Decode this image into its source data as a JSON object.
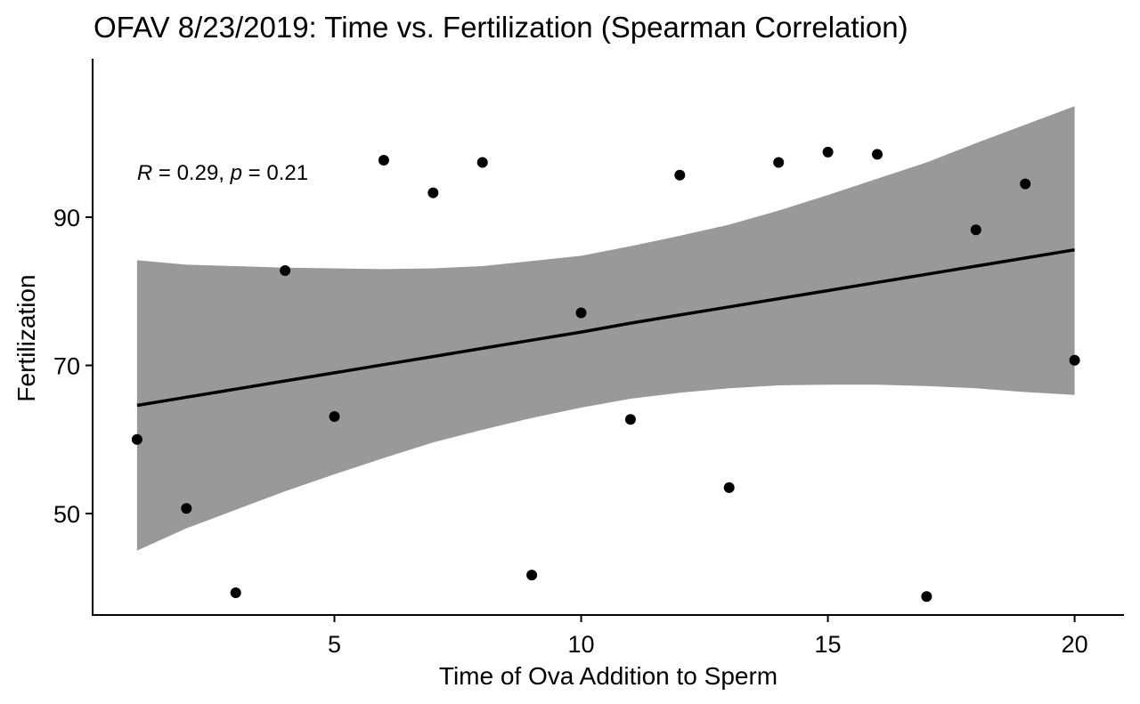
{
  "chart_data": {
    "type": "scatter",
    "title": "OFAV 8/23/2019: Time vs. Fertilization (Spearman Correlation)",
    "xlabel": "Time of Ova Addition to Sperm",
    "ylabel": "Fertilization",
    "xlim": [
      0.1,
      21.0
    ],
    "ylim": [
      36.3,
      111.4
    ],
    "xticks": [
      5,
      10,
      15,
      20
    ],
    "xtick_labels": [
      "5",
      "10",
      "15",
      "20"
    ],
    "yticks": [
      50,
      70,
      90
    ],
    "ytick_labels": [
      "50",
      "70",
      "90"
    ],
    "grid": false,
    "legend": "none",
    "colors": {
      "points": "#000000",
      "fit_line": "#000000",
      "confidence_band": "#999999",
      "axes": "#000000"
    },
    "annotation": {
      "r_symbol": "R",
      "r_value": " = 0.29, ",
      "p_symbol": "p",
      "p_value": " = 0.21",
      "anchor_x": 1,
      "anchor_y": 96
    },
    "series": [
      {
        "x": [
          1,
          2,
          3,
          4,
          5,
          6,
          7,
          8,
          9,
          10,
          11,
          12,
          13,
          14,
          15,
          16,
          17,
          18,
          19,
          20
        ],
        "y": [
          60.0,
          50.7,
          39.3,
          82.8,
          63.1,
          97.7,
          93.3,
          97.4,
          41.7,
          77.1,
          62.7,
          95.7,
          53.5,
          97.4,
          98.8,
          98.5,
          38.8,
          88.3,
          94.5,
          70.7
        ]
      }
    ],
    "fit": {
      "method": "lm",
      "x": [
        1,
        2,
        3,
        4,
        5,
        6,
        7,
        8,
        9,
        10,
        11,
        12,
        13,
        14,
        15,
        16,
        17,
        18,
        19,
        20
      ],
      "y": [
        64.6,
        65.7,
        66.8,
        67.9,
        69.0,
        70.1,
        71.2,
        72.3,
        73.4,
        74.5,
        75.7,
        76.8,
        77.9,
        79.0,
        80.1,
        81.2,
        82.3,
        83.4,
        84.5,
        85.6
      ],
      "lower": [
        45.0,
        48.0,
        50.5,
        53.0,
        55.3,
        57.5,
        59.6,
        61.3,
        62.9,
        64.3,
        65.5,
        66.3,
        66.9,
        67.3,
        67.4,
        67.4,
        67.2,
        66.9,
        66.4,
        66.0
      ],
      "upper": [
        84.2,
        83.6,
        83.4,
        83.2,
        83.1,
        83.0,
        83.1,
        83.4,
        84.1,
        84.8,
        86.1,
        87.5,
        89.0,
        90.9,
        93.0,
        95.2,
        97.4,
        100.0,
        102.5,
        105.0
      ]
    }
  }
}
